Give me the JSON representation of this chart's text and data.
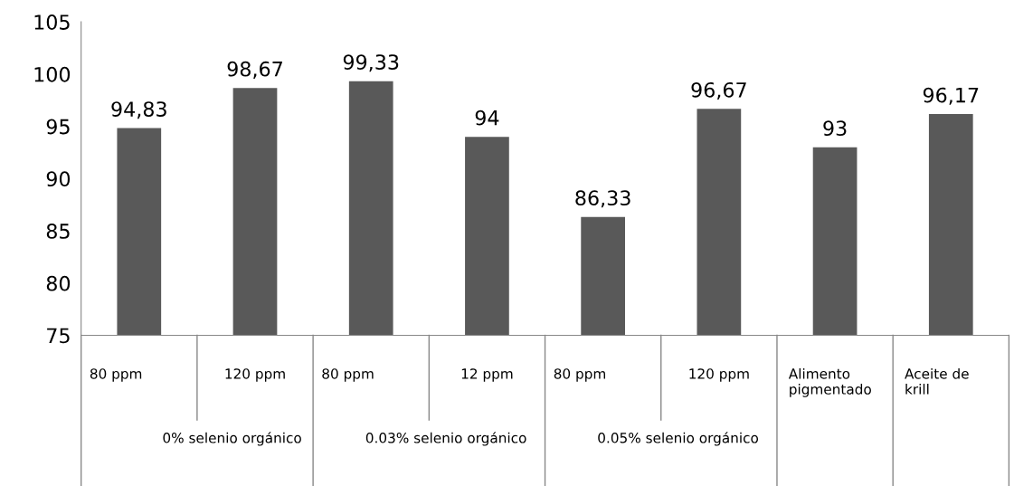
{
  "chart_data": {
    "type": "bar",
    "categories": [
      "80 ppm",
      "120 ppm",
      "80 ppm",
      "12 ppm",
      "80 ppm",
      "120 ppm",
      "Alimento pigmentado",
      "Aceite de krill"
    ],
    "values": [
      94.83,
      98.67,
      99.33,
      94,
      86.33,
      96.67,
      93,
      96.17
    ],
    "value_labels": [
      "94,83",
      "98,67",
      "99,33",
      "94",
      "86,33",
      "96,67",
      "93",
      "96,17"
    ],
    "color": "#595959",
    "ylim": [
      75,
      105
    ],
    "yticks": [
      75,
      80,
      85,
      90,
      95,
      100,
      105
    ],
    "grid": false,
    "annotations": [
      "0% selenio orgánico",
      "0.03% selenio orgánico",
      "0.05% selenio orgánico"
    ]
  }
}
